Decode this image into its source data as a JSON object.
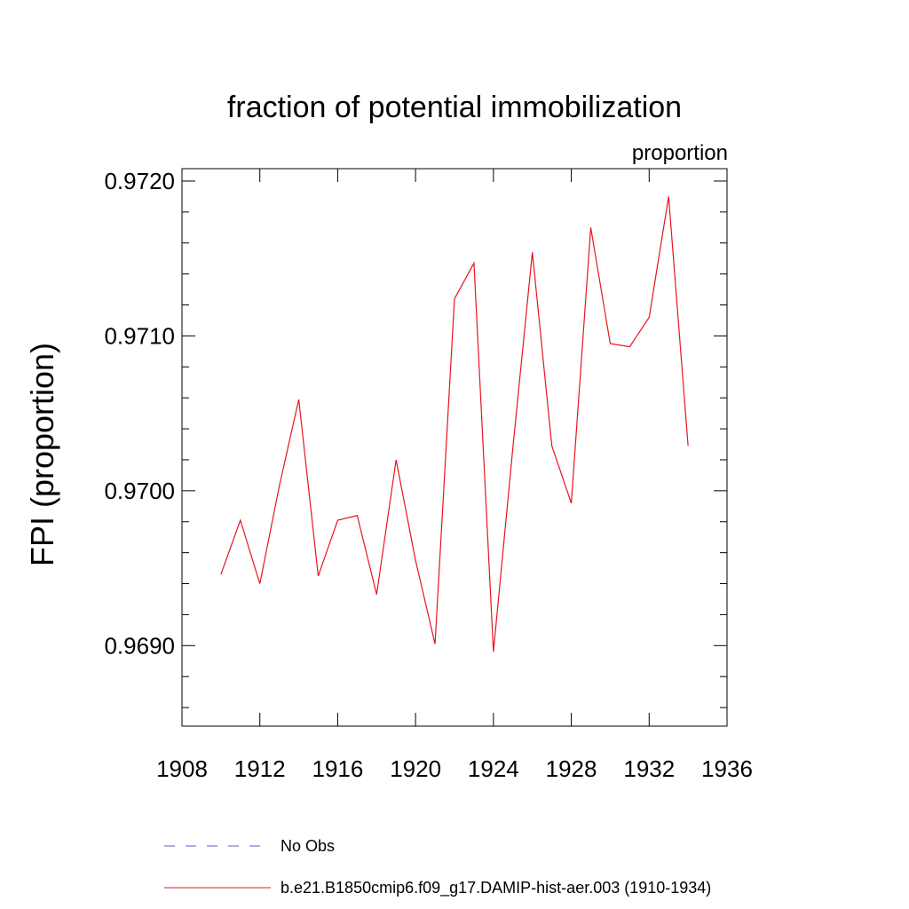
{
  "chart_data": {
    "type": "line",
    "title": "fraction of potential immobilization",
    "subtitle": "proportion",
    "xlabel": "",
    "ylabel": "FPI  (proportion)",
    "xlim": [
      1908,
      1936
    ],
    "ylim": [
      0.96848,
      0.97208
    ],
    "x_ticks": [
      1908,
      1912,
      1916,
      1920,
      1924,
      1928,
      1932,
      1936
    ],
    "x_tick_labels": [
      "1908",
      "1912",
      "1916",
      "1920",
      "1924",
      "1928",
      "1932",
      "1936"
    ],
    "y_ticks": [
      0.969,
      0.97,
      0.971,
      0.972
    ],
    "y_tick_labels": [
      "0.9690",
      "0.9700",
      "0.9710",
      "0.9720"
    ],
    "grid": false,
    "legend_position": "bottom",
    "series": [
      {
        "name": "b.e21.B1850cmip6.f09_g17.DAMIP-hist-aer.003 (1910-1934)",
        "color": "#e8141c",
        "style": "solid",
        "x": [
          1910,
          1911,
          1912,
          1913,
          1914,
          1915,
          1916,
          1917,
          1918,
          1919,
          1920,
          1921,
          1922,
          1923,
          1924,
          1925,
          1926,
          1927,
          1928,
          1929,
          1930,
          1931,
          1932,
          1933,
          1934
        ],
        "y": [
          0.96946,
          0.96981,
          0.9694,
          0.97003,
          0.97059,
          0.96945,
          0.96981,
          0.96984,
          0.96933,
          0.9702,
          0.96955,
          0.96901,
          0.97124,
          0.97147,
          0.96896,
          0.97028,
          0.97154,
          0.97029,
          0.96992,
          0.9717,
          0.97095,
          0.97093,
          0.97112,
          0.9719,
          0.97029
        ]
      }
    ],
    "legend": [
      {
        "label": "No Obs",
        "color": "#6a5acd",
        "style": "dashed"
      },
      {
        "label": "b.e21.B1850cmip6.f09_g17.DAMIP-hist-aer.003 (1910-1934)",
        "color": "#e8141c",
        "style": "solid"
      }
    ]
  }
}
